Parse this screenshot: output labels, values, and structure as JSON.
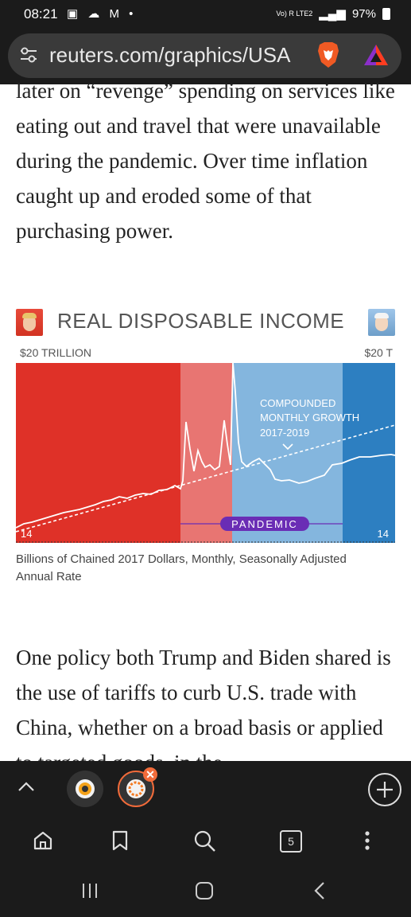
{
  "status": {
    "time": "08:21",
    "left_icons": "▣ ☁ M •",
    "network": "Vo) R LTE2",
    "battery": "97%"
  },
  "urlbar": {
    "url": "reuters.com/graphics/USA"
  },
  "article": {
    "paragraph1": "later on “revenge” spending on services like eating out and travel that were unavailable during the pandemic. Over time inflation caught up and eroded some of that purchasing power.",
    "paragraph2": "One policy both Trump and Biden shared is the use of tariffs to curb U.S. trade with China, whether on a broad basis or applied to targeted goods, in the"
  },
  "chart": {
    "title": "REAL DISPOSABLE INCOME",
    "top_label_left": "$20 TRILLION",
    "top_label_right": "$20 T",
    "bottom_label_left": "14",
    "bottom_label_right": "14",
    "annotation": [
      "COMPOUNDED",
      "MONTHLY GROWTH",
      "2017-2019"
    ],
    "pandemic_label": "PANDEMIC",
    "caption": "Billions of Chained 2017 Dollars, Monthly, Seasonally Adjusted Annual Rate",
    "colors": {
      "trump": "#df3128",
      "pandemic_trump": "#e87572",
      "pandemic_biden": "#84b6de",
      "biden": "#2d7fc1",
      "pill": "#6a2db5"
    }
  },
  "tabs": {
    "count": "5"
  }
}
